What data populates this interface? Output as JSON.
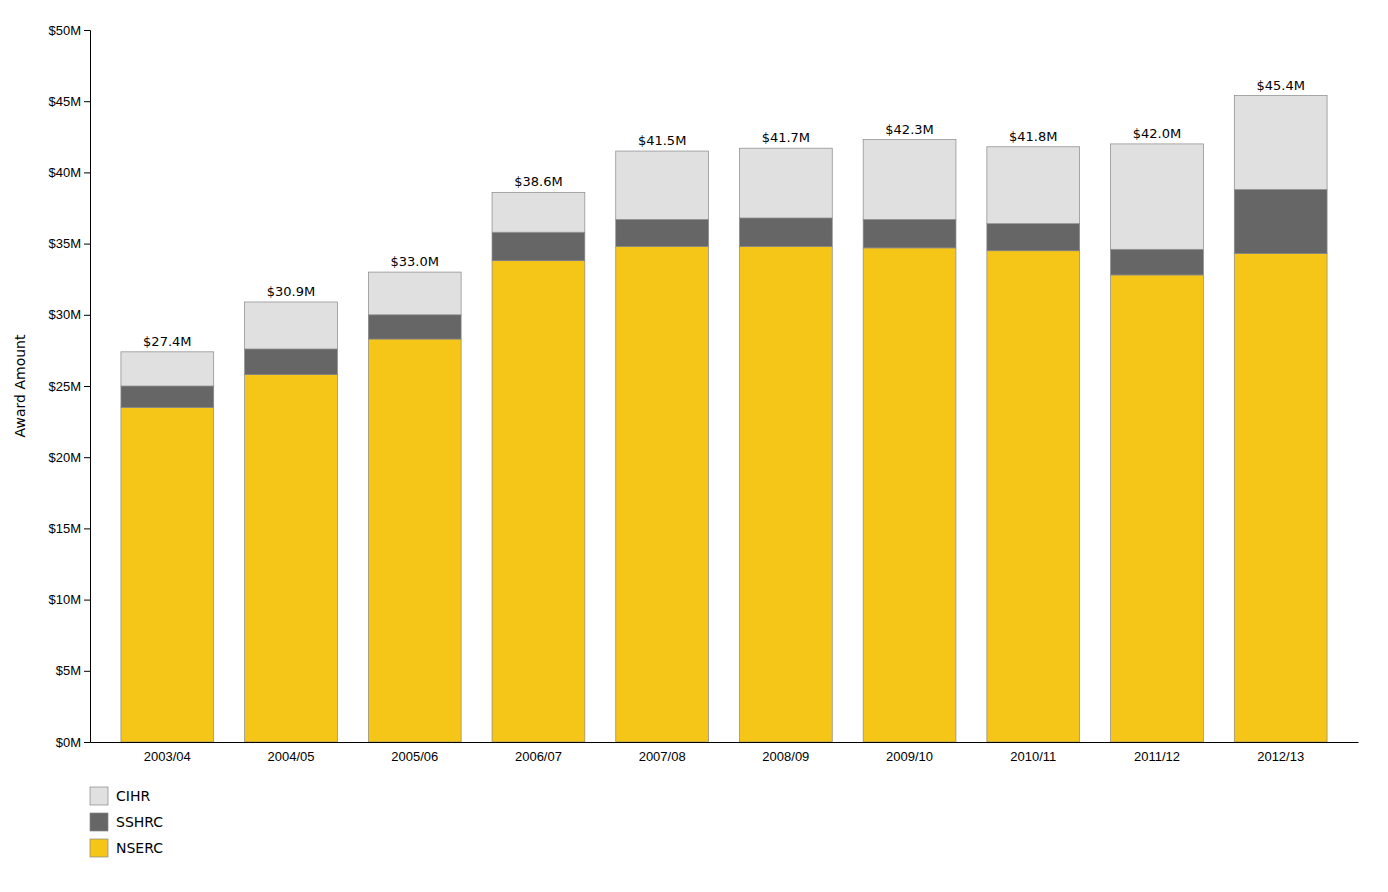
{
  "chart_data": {
    "type": "bar",
    "stacked": true,
    "grid": false,
    "legend": "bottom-left",
    "categories": [
      "2003/04",
      "2004/05",
      "2005/06",
      "2006/07",
      "2007/08",
      "2008/09",
      "2009/10",
      "2010/11",
      "2011/12",
      "2012/13"
    ],
    "series": [
      {
        "name": "NSERC",
        "color": "#F5C518",
        "values": [
          23.5,
          25.8,
          28.3,
          33.8,
          34.8,
          34.8,
          34.7,
          34.5,
          32.8,
          34.3
        ]
      },
      {
        "name": "SSHRC",
        "color": "#666666",
        "values": [
          1.5,
          1.8,
          1.7,
          2.0,
          1.9,
          2.0,
          2.0,
          1.9,
          1.8,
          4.5
        ]
      },
      {
        "name": "CIHR",
        "color": "#E0E0E0",
        "values": [
          2.4,
          3.3,
          3.0,
          2.8,
          4.8,
          4.9,
          5.6,
          5.4,
          7.4,
          6.6
        ]
      }
    ],
    "totals": [
      27.4,
      30.9,
      33.0,
      38.6,
      41.5,
      41.7,
      42.3,
      41.8,
      42.0,
      45.4
    ],
    "total_labels": [
      "$27.4M",
      "$30.9M",
      "$33.0M",
      "$38.6M",
      "$41.5M",
      "$41.7M",
      "$42.3M",
      "$41.8M",
      "$42.0M",
      "$45.4M"
    ],
    "ylabel": "Award Amount",
    "ylim": [
      0,
      50
    ],
    "yticks": [
      {
        "value": 0,
        "label": "$0M"
      },
      {
        "value": 5,
        "label": "$5M"
      },
      {
        "value": 10,
        "label": "$10M"
      },
      {
        "value": 15,
        "label": "$15M"
      },
      {
        "value": 20,
        "label": "$20M"
      },
      {
        "value": 25,
        "label": "$25M"
      },
      {
        "value": 30,
        "label": "$30M"
      },
      {
        "value": 35,
        "label": "$35M"
      },
      {
        "value": 40,
        "label": "$40M"
      },
      {
        "value": 45,
        "label": "$45M"
      },
      {
        "value": 50,
        "label": "$50M"
      }
    ]
  }
}
